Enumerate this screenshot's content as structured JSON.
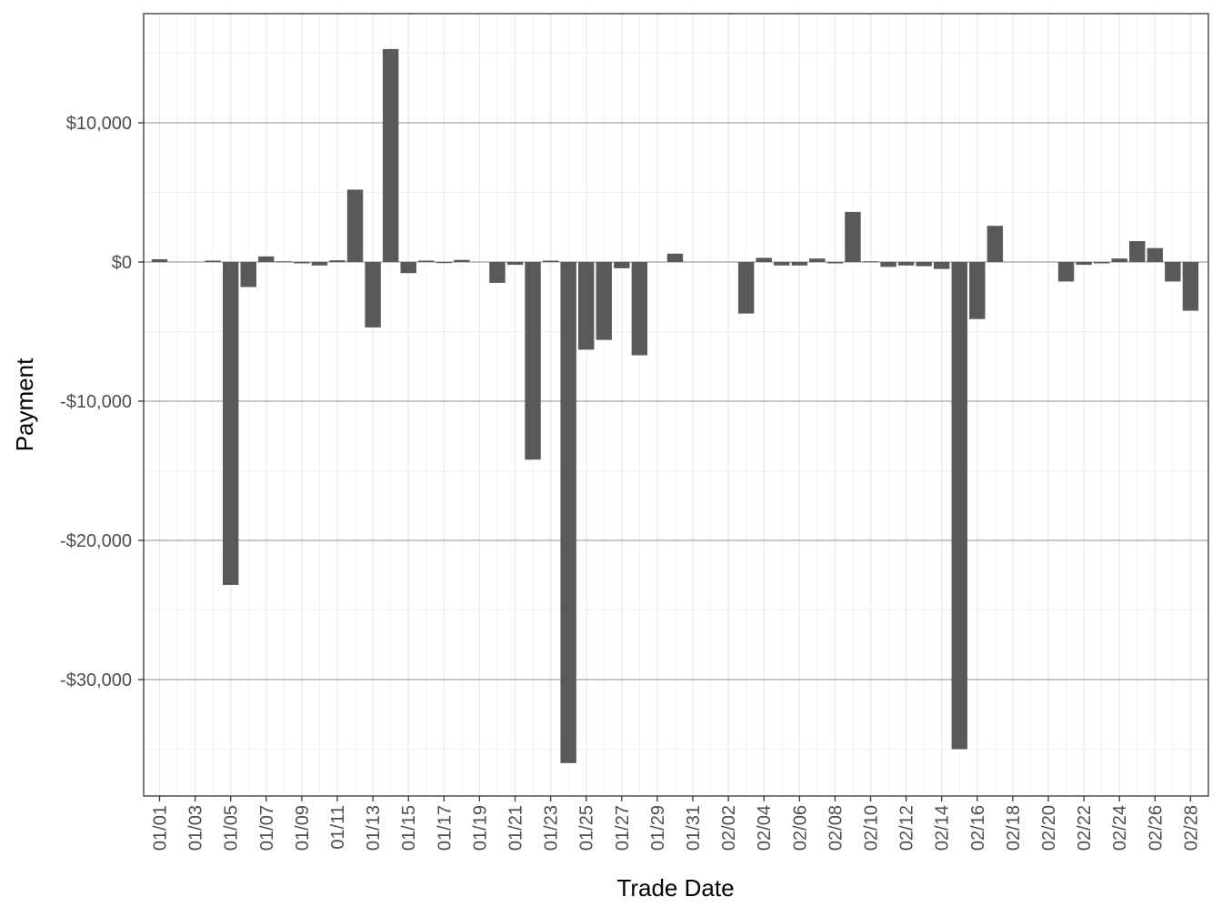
{
  "chart_data": {
    "type": "bar",
    "title": "",
    "xlabel": "Trade Date",
    "ylabel": "Payment",
    "ylim": [
      -38000,
      17800
    ],
    "yticks": [
      {
        "value": 10000,
        "label": "$10,000"
      },
      {
        "value": 0,
        "label": "$0"
      },
      {
        "value": -10000,
        "label": "-$10,000"
      },
      {
        "value": -20000,
        "label": "-$20,000"
      },
      {
        "value": -30000,
        "label": "-$30,000"
      }
    ],
    "xtick_labels": [
      "01/01",
      "01/03",
      "01/05",
      "01/07",
      "01/09",
      "01/11",
      "01/13",
      "01/15",
      "01/17",
      "01/19",
      "01/21",
      "01/23",
      "01/25",
      "01/27",
      "01/29",
      "01/31",
      "02/02",
      "02/04",
      "02/06",
      "02/08",
      "02/10",
      "02/12",
      "02/14",
      "02/16",
      "02/18",
      "02/20",
      "02/22",
      "02/24",
      "02/26",
      "02/28"
    ],
    "grid": true,
    "bar_color": "#595959",
    "categories": [
      "01/01",
      "01/02",
      "01/03",
      "01/04",
      "01/05",
      "01/06",
      "01/07",
      "01/08",
      "01/09",
      "01/10",
      "01/11",
      "01/12",
      "01/13",
      "01/14",
      "01/15",
      "01/16",
      "01/17",
      "01/18",
      "01/19",
      "01/20",
      "01/21",
      "01/22",
      "01/23",
      "01/24",
      "01/25",
      "01/26",
      "01/27",
      "01/28",
      "01/29",
      "01/30",
      "01/31",
      "02/01",
      "02/02",
      "02/03",
      "02/04",
      "02/05",
      "02/06",
      "02/07",
      "02/08",
      "02/09",
      "02/10",
      "02/11",
      "02/12",
      "02/13",
      "02/14",
      "02/15",
      "02/16",
      "02/17",
      "02/18",
      "02/19",
      "02/20",
      "02/21",
      "02/22",
      "02/23",
      "02/24",
      "02/25",
      "02/26",
      "02/27",
      "02/28"
    ],
    "values": [
      200,
      0,
      0,
      100,
      -23200,
      -1800,
      400,
      50,
      -100,
      -250,
      120,
      5200,
      -4700,
      15300,
      -800,
      100,
      -50,
      150,
      0,
      -1500,
      -200,
      -14200,
      100,
      -36000,
      -6300,
      -5600,
      -450,
      -6700,
      0,
      600,
      0,
      0,
      0,
      -3700,
      300,
      -250,
      -250,
      250,
      -100,
      3600,
      50,
      -350,
      -250,
      -300,
      -500,
      -35000,
      -4100,
      2600,
      0,
      0,
      0,
      -1400,
      -200,
      -100,
      250,
      1500,
      1000,
      -1400,
      -3500
    ]
  }
}
